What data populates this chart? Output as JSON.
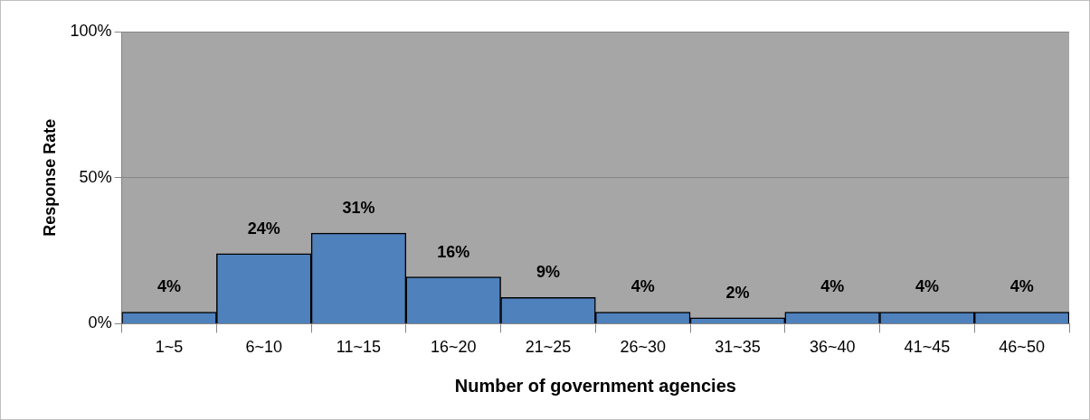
{
  "chart_data": {
    "type": "bar",
    "xlabel": "Number of government agencies",
    "ylabel": "Response Rate",
    "categories": [
      "1~5",
      "6~10",
      "11~15",
      "16~20",
      "21~25",
      "26~30",
      "31~35",
      "36~40",
      "41~45",
      "46~50"
    ],
    "values": [
      4,
      24,
      31,
      16,
      9,
      4,
      2,
      4,
      4,
      4
    ],
    "value_labels": [
      "4%",
      "24%",
      "31%",
      "16%",
      "9%",
      "4%",
      "2%",
      "4%",
      "4%",
      "4%"
    ],
    "color": "#4f81bd",
    "ylim": [
      0,
      100
    ],
    "yticks": [
      {
        "value": 0,
        "label": "0%"
      },
      {
        "value": 50,
        "label": "50%"
      },
      {
        "value": 100,
        "label": "100%"
      }
    ],
    "grid": "y",
    "legend": false
  }
}
